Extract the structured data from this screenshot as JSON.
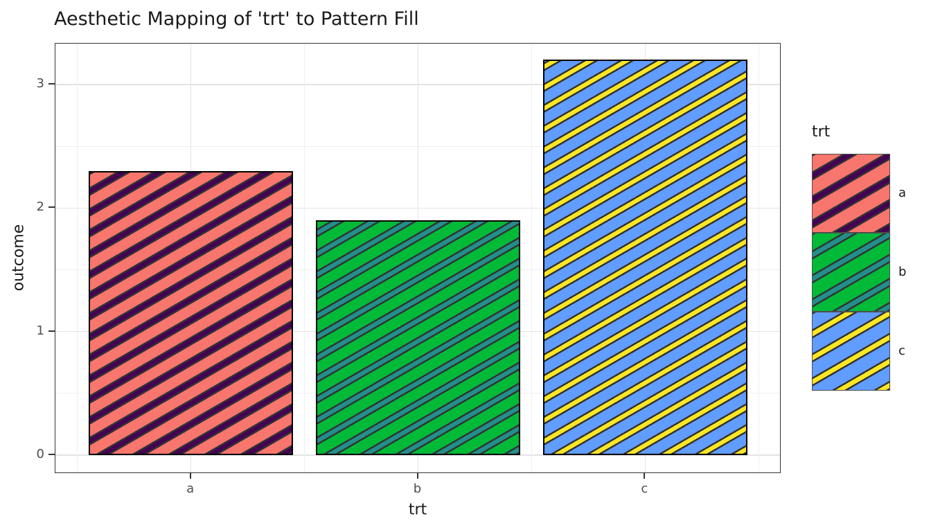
{
  "title": "Aesthetic Mapping of 'trt' to Pattern Fill",
  "chart_data": {
    "type": "bar",
    "title": "Aesthetic Mapping of 'trt' to Pattern Fill",
    "xlabel": "trt",
    "ylabel": "outcome",
    "categories": [
      "a",
      "b",
      "c"
    ],
    "values": [
      2.3,
      1.9,
      3.2
    ],
    "y_ticks": [
      0,
      1,
      2,
      3
    ],
    "y_minor_gridlines": [
      0.5,
      1.5,
      2.5
    ],
    "ylim": [
      -0.15,
      3.33
    ],
    "grid": "major and minor, light gray on white panel",
    "bar_width_fraction": 0.9,
    "bar_outline_color": "#000000",
    "pattern": {
      "type": "stripe",
      "angle_deg": 30,
      "stroke": "#333333"
    },
    "series_styles": [
      {
        "category": "a",
        "fill": "#F8766D",
        "stripe_fill": "#440154"
      },
      {
        "category": "b",
        "fill": "#00BA38",
        "stripe_fill": "#21908C"
      },
      {
        "category": "c",
        "fill": "#619CFF",
        "stripe_fill": "#FDE725"
      }
    ],
    "legend": {
      "title": "trt",
      "position": "right",
      "entries": [
        {
          "label": "a",
          "fill": "#F8766D",
          "stripe_fill": "#440154"
        },
        {
          "label": "b",
          "fill": "#00BA38",
          "stripe_fill": "#21908C"
        },
        {
          "label": "c",
          "fill": "#619CFF",
          "stripe_fill": "#FDE725"
        }
      ]
    }
  },
  "theme": {
    "panel_background": "#FFFFFF",
    "panel_border": "#333333",
    "grid_major": "#E3E3E3",
    "grid_minor": "#EFEFEF",
    "tick_mark": "#333333",
    "tick_label_color": "#4D4D4D",
    "text_color": "#1A1A1A"
  }
}
